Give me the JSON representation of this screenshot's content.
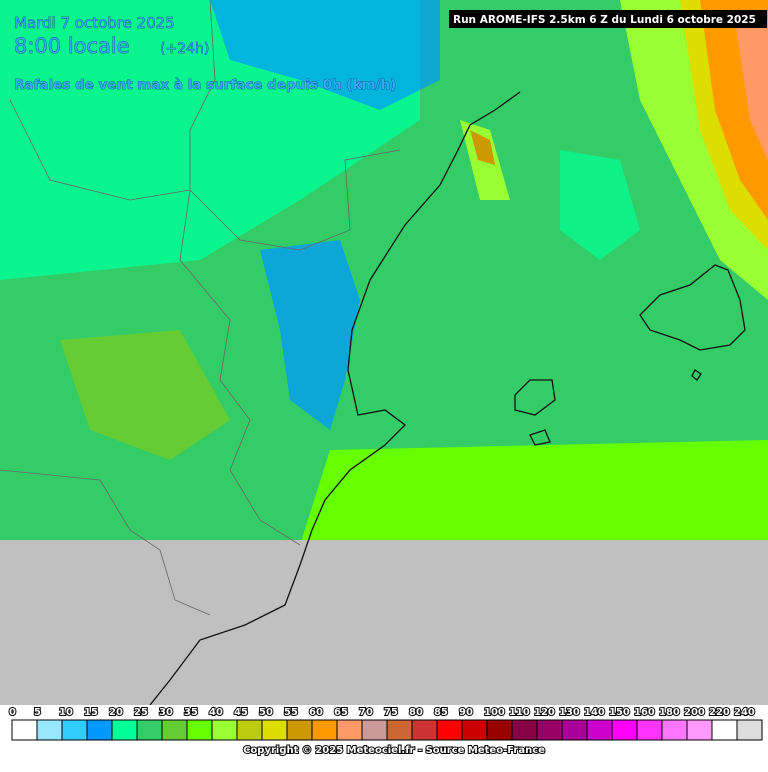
{
  "header": {
    "date": "Mardi 7 octobre 2025",
    "time": "8:00 locale",
    "lead": "(+24h)",
    "subtitle": "Rafales de vent max à la surface depuis 0h (km/h)",
    "run": "Run AROME-IFS 2.5km 6 Z du Lundi 6 octobre 2025"
  },
  "legend": {
    "values": [
      0,
      5,
      10,
      15,
      20,
      25,
      30,
      35,
      40,
      45,
      50,
      55,
      60,
      65,
      70,
      75,
      80,
      85,
      90,
      100,
      110,
      120,
      130,
      140,
      150,
      160,
      180,
      200,
      220,
      240
    ],
    "colors": [
      "#ffffff",
      "#99e6ff",
      "#33ccff",
      "#0099ff",
      "#00ff99",
      "#33cc66",
      "#66cc33",
      "#66ff00",
      "#99ff33",
      "#bbcc11",
      "#dddd00",
      "#cc9900",
      "#ff9900",
      "#ff9966",
      "#cc9999",
      "#cc6633",
      "#cc3333",
      "#ff0000",
      "#cc0000",
      "#990000",
      "#880044",
      "#990066",
      "#aa0099",
      "#cc00cc",
      "#ff00ff",
      "#ff33ff",
      "#ff77ff",
      "#ff99ff",
      "#ffffff",
      "#dddddd"
    ]
  },
  "footer": {
    "copyright": "Copyright © 2025 Meteociel.fr - Source Meteo-France"
  }
}
